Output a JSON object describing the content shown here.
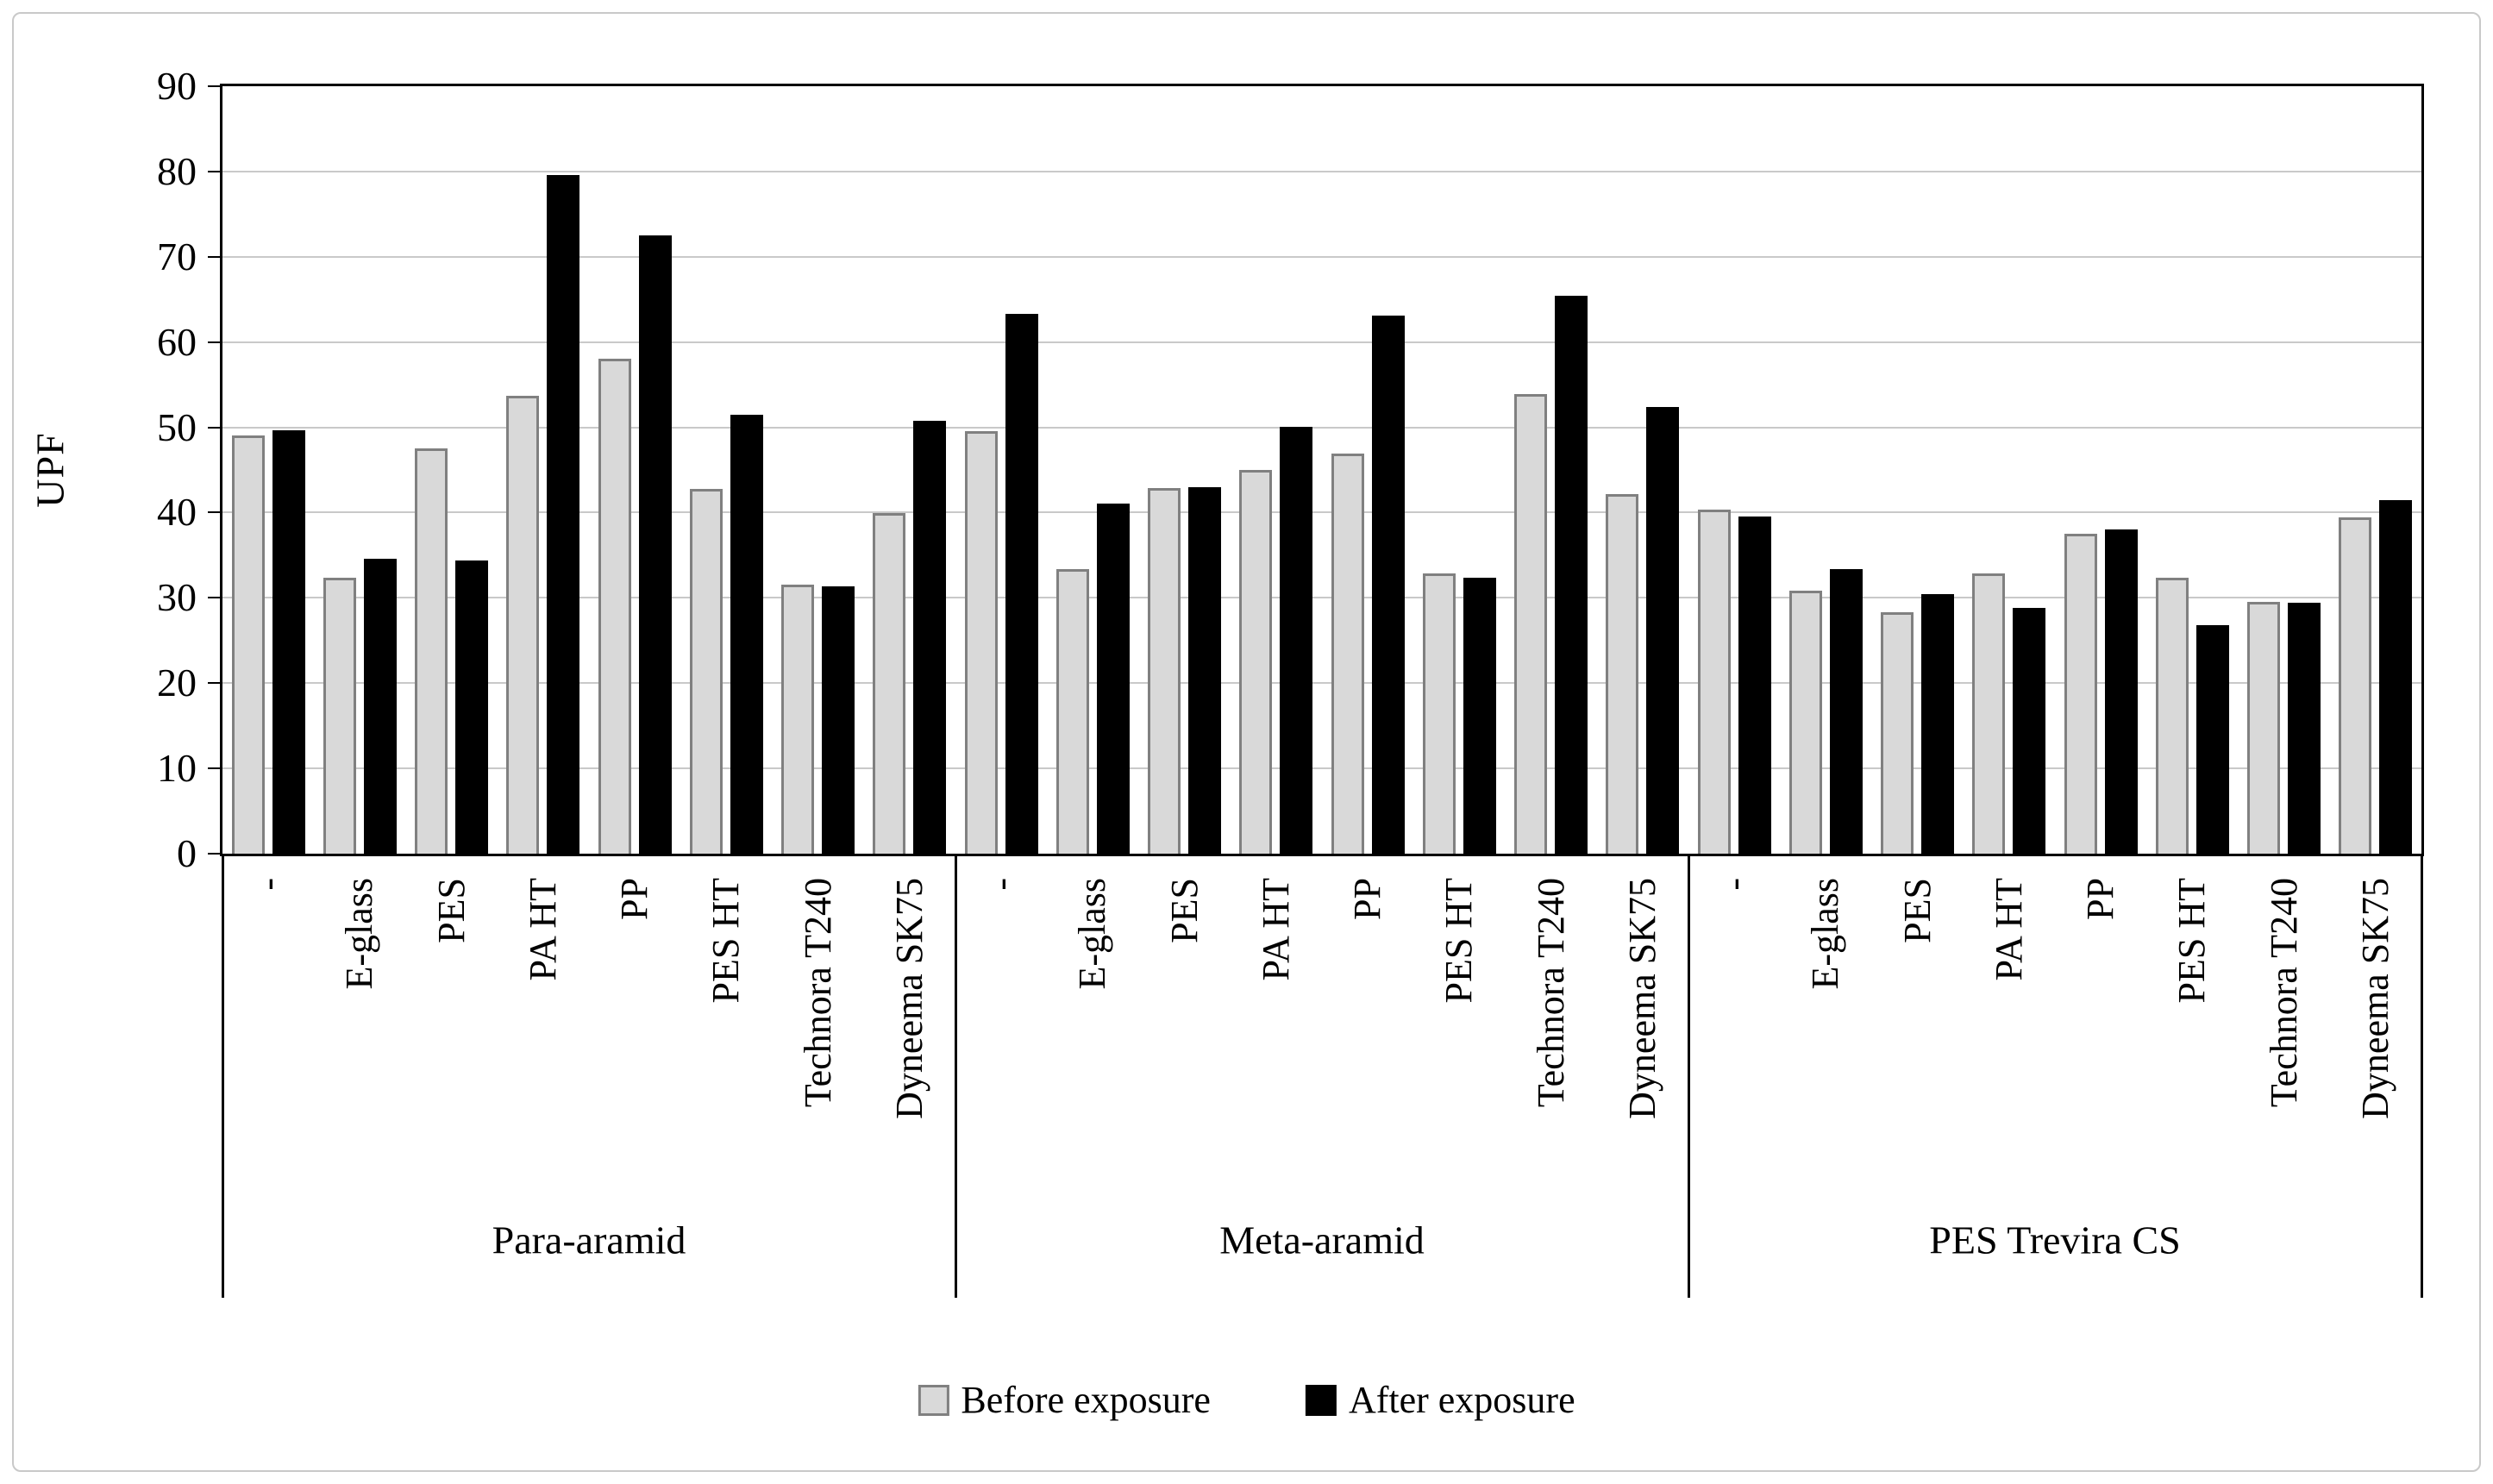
{
  "figure": {
    "background": "#ffffff",
    "frame_border_color": "#c9c9c9",
    "text_color": "#000000",
    "gridline_color": "#c9c9c9"
  },
  "chart_data": {
    "type": "bar",
    "title": "",
    "xlabel": "",
    "ylabel": "UPF",
    "ylim": [
      0,
      90
    ],
    "yticks": [
      0,
      10,
      20,
      30,
      40,
      50,
      60,
      70,
      80,
      90
    ],
    "grid": "horizontal",
    "legend_position": "bottom",
    "categories": [
      "-",
      "E-glass",
      "PES",
      "PA HT",
      "PP",
      "PES HT",
      "Technora T240",
      "Dyneema SK75"
    ],
    "group_labels": [
      "Para-aramid",
      "Meta-aramid",
      "PES Trevira CS"
    ],
    "series": [
      {
        "name": "Before exposure",
        "color": "#d9d9d9",
        "border_color": "#808080",
        "values": [
          [
            49.0,
            32.4,
            47.5,
            53.7,
            58.0,
            42.8,
            31.6,
            39.9
          ],
          [
            49.6,
            33.4,
            42.9,
            45.0,
            46.9,
            32.9,
            53.9,
            42.2
          ],
          [
            40.3,
            30.8,
            28.3,
            32.9,
            37.5,
            32.4,
            29.5,
            39.4
          ]
        ]
      },
      {
        "name": "After exposure",
        "color": "#000000",
        "border_color": "#000000",
        "values": [
          [
            49.7,
            34.6,
            34.4,
            79.6,
            72.5,
            51.5,
            31.4,
            50.8
          ],
          [
            63.3,
            41.1,
            43.0,
            50.1,
            63.1,
            32.4,
            65.4,
            52.4
          ],
          [
            39.5,
            33.4,
            30.4,
            28.8,
            38.0,
            26.8,
            29.4,
            41.5
          ]
        ]
      }
    ]
  }
}
